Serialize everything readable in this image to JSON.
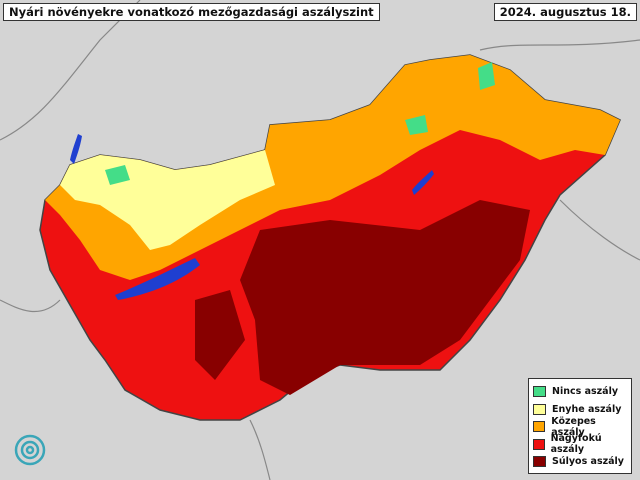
{
  "header": {
    "title": "Nyári növényekre vonatkozó mezőgazdasági aszályszint",
    "date": "2024. augusztus 18."
  },
  "legend": {
    "items": [
      {
        "label": "Nincs aszály",
        "color": "#44dd88"
      },
      {
        "label": "Enyhe aszály",
        "color": "#ffff99"
      },
      {
        "label": "Közepes aszály",
        "color": "#ffa500"
      },
      {
        "label": "Nagyfokú aszály",
        "color": "#ee1111"
      },
      {
        "label": "Súlyos aszály",
        "color": "#880000"
      }
    ]
  }
}
